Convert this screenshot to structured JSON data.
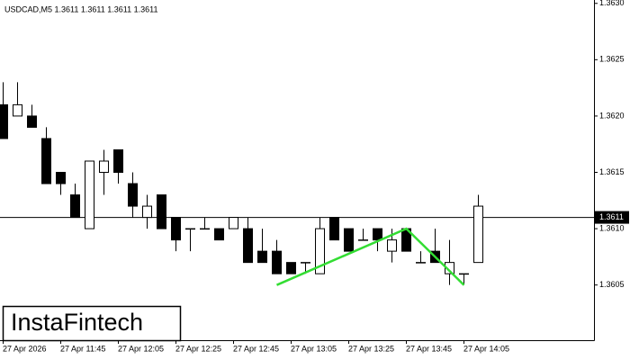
{
  "chart_data": {
    "type": "candlestick",
    "header": "USDCAD,M5  1.3611 1.3611 1.3611 1.3611",
    "logo": "InstaFintech",
    "categories": [
      "27 Apr 2026",
      null,
      null,
      null,
      "27 Apr 11:45",
      null,
      null,
      null,
      "27 Apr 12:05",
      null,
      null,
      null,
      "27 Apr 12:25",
      null,
      null,
      null,
      "27 Apr 12:45",
      null,
      null,
      null,
      "27 Apr 13:05",
      null,
      null,
      null,
      "27 Apr 13:25",
      null,
      null,
      null,
      "27 Apr 13:45",
      null,
      null,
      null,
      "27 Apr 14:05",
      null
    ],
    "open": [
      1.3621,
      1.362,
      1.362,
      1.3618,
      1.3615,
      1.3613,
      1.361,
      1.3615,
      1.3617,
      1.3614,
      1.3611,
      1.3613,
      1.3611,
      1.361,
      1.361,
      1.361,
      1.361,
      1.361,
      1.3608,
      1.3608,
      1.3607,
      1.3607,
      1.3606,
      1.3611,
      1.361,
      1.3609,
      1.361,
      1.3608,
      1.361,
      1.3607,
      1.3608,
      1.3606,
      1.3606,
      1.3607
    ],
    "high": [
      1.3623,
      1.3623,
      1.3621,
      1.3619,
      1.3615,
      1.3614,
      1.3616,
      1.3617,
      1.3617,
      1.3615,
      1.3613,
      1.3613,
      1.3611,
      1.361,
      1.3611,
      1.361,
      1.3611,
      1.3611,
      1.361,
      1.3609,
      1.3607,
      1.3607,
      1.3611,
      1.3611,
      1.361,
      1.361,
      1.361,
      1.361,
      1.361,
      1.3608,
      1.361,
      1.3609,
      1.3606,
      1.3613
    ],
    "low": [
      1.3618,
      1.362,
      1.3619,
      1.3614,
      1.3613,
      1.3611,
      1.361,
      1.3613,
      1.3614,
      1.3611,
      1.361,
      1.361,
      1.3608,
      1.3608,
      1.361,
      1.3609,
      1.361,
      1.3607,
      1.3607,
      1.3606,
      1.3606,
      1.3606,
      1.3606,
      1.3609,
      1.3608,
      1.3609,
      1.3608,
      1.3607,
      1.3608,
      1.3607,
      1.3607,
      1.3605,
      1.3605,
      1.3607
    ],
    "close": [
      1.3618,
      1.3621,
      1.3619,
      1.3614,
      1.3614,
      1.3611,
      1.3616,
      1.3616,
      1.3615,
      1.3612,
      1.3612,
      1.361,
      1.3609,
      1.361,
      1.361,
      1.3609,
      1.3611,
      1.3607,
      1.3607,
      1.3606,
      1.3606,
      1.3607,
      1.361,
      1.3609,
      1.3608,
      1.3609,
      1.3609,
      1.3609,
      1.3608,
      1.3607,
      1.3607,
      1.3607,
      1.3606,
      1.3612
    ],
    "current_price": 1.3611,
    "pattern": {
      "color": "#33dd33",
      "candles": [
        19,
        28,
        32
      ],
      "values": [
        1.3605,
        1.361,
        1.3605
      ]
    },
    "ylim": [
      1.36001,
      1.36303
    ],
    "yticks": [
      {
        "value": 1.363,
        "label": "1.3630"
      },
      1.3625,
      {
        "value": 1.362,
        "label": "1.3620"
      },
      1.3615,
      {
        "value": 1.361,
        "label": "1.3610"
      },
      1.3605
    ]
  }
}
